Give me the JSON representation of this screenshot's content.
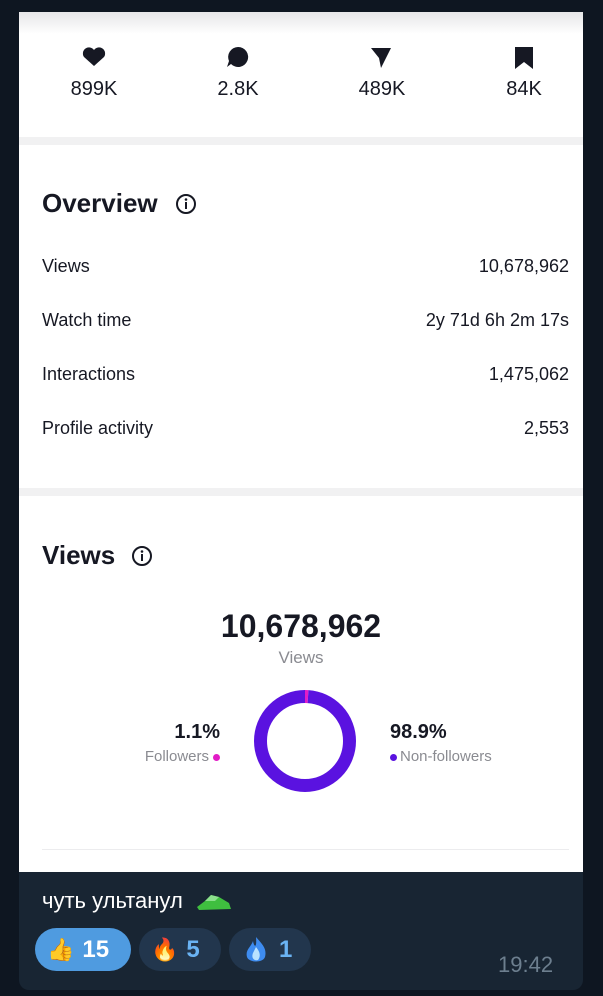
{
  "stats": [
    "899K",
    "2.8K",
    "489K",
    "84K"
  ],
  "overview": {
    "title": "Overview",
    "rows": [
      [
        "Views",
        "10,678,962"
      ],
      [
        "Watch time",
        "2y 71d 6h 2m 17s"
      ],
      [
        "Interactions",
        "1,475,062"
      ],
      [
        "Profile activity",
        "2,553"
      ]
    ]
  },
  "views": {
    "title": "Views",
    "total": "10,678,962",
    "total_label": "Views"
  },
  "chart_data": {
    "type": "pie",
    "categories": [
      "Followers",
      "Non-followers"
    ],
    "values": [
      1.1,
      98.9
    ],
    "value_labels": [
      "1.1%",
      "98.9%"
    ],
    "colors": [
      "#e21cc6",
      "#5a12e0"
    ]
  },
  "message": {
    "caption": "чуть ультанул",
    "reactions": [
      {
        "emoji": "👍",
        "count": "15"
      },
      {
        "emoji": "🔥",
        "count": "5"
      },
      {
        "count": "1"
      }
    ],
    "time": "19:42"
  }
}
